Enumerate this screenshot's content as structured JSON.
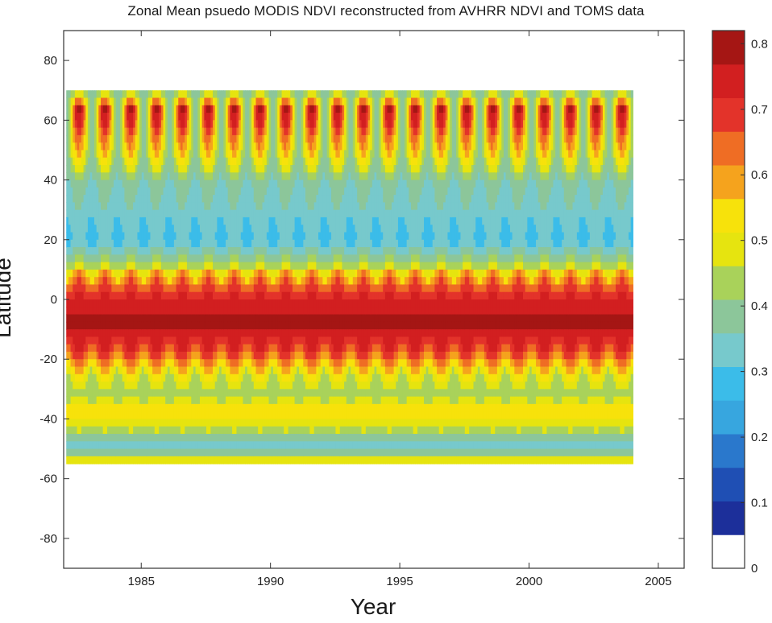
{
  "chart_data": {
    "type": "heatmap",
    "title": "Zonal Mean psuedo MODIS NDVI reconstructed from AVHRR NDVI and TOMS data",
    "xlabel": "Year",
    "ylabel": "Latitude",
    "xlim": [
      1982,
      2006
    ],
    "ylim": [
      -90,
      90
    ],
    "x_ticks": [
      1985,
      1990,
      1995,
      2000,
      2005
    ],
    "y_ticks": [
      80,
      60,
      40,
      20,
      0,
      -20,
      -40,
      -60,
      -80
    ],
    "data_x_range": [
      1982.1,
      2004.0
    ],
    "data_lat_range": [
      -55,
      70
    ],
    "colorbar": {
      "range": [
        0,
        0.82
      ],
      "ticks": [
        0.8,
        0.7,
        0.6,
        0.5,
        0.4,
        0.3,
        0.2,
        0.1,
        0
      ],
      "colors": [
        "#ffffff",
        "#1c2f9a",
        "#1f4fb4",
        "#2a78cc",
        "#37a6df",
        "#3bbce9",
        "#77c9cc",
        "#8cc69a",
        "#a9d25a",
        "#e6e40f",
        "#f7e20b",
        "#f5a31d",
        "#ef6d24",
        "#e3332a",
        "#d21f20",
        "#a51614"
      ]
    },
    "zonal_profile": [
      {
        "lat": 70,
        "summer": 0.4,
        "winter": 0.35
      },
      {
        "lat": 64,
        "summer": 0.8,
        "winter": 0.35
      },
      {
        "lat": 58,
        "summer": 0.72,
        "winter": 0.36
      },
      {
        "lat": 48,
        "summer": 0.55,
        "winter": 0.36
      },
      {
        "lat": 40,
        "summer": 0.38,
        "winter": 0.32
      },
      {
        "lat": 30,
        "summer": 0.33,
        "winter": 0.28
      },
      {
        "lat": 20,
        "summer": 0.3,
        "winter": 0.24
      },
      {
        "lat": 12,
        "summer": 0.42,
        "winter": 0.36
      },
      {
        "lat": 8,
        "summer": 0.65,
        "winter": 0.48
      },
      {
        "lat": 0,
        "summer": 0.73,
        "winter": 0.72
      },
      {
        "lat": -8,
        "summer": 0.78,
        "winter": 0.78
      },
      {
        "lat": -18,
        "summer": 0.6,
        "winter": 0.72
      },
      {
        "lat": -25,
        "summer": 0.4,
        "winter": 0.55
      },
      {
        "lat": -32,
        "summer": 0.38,
        "winter": 0.42
      },
      {
        "lat": -37,
        "summer": 0.52,
        "winter": 0.55
      },
      {
        "lat": -42,
        "summer": 0.45,
        "winter": 0.48
      },
      {
        "lat": -47,
        "summer": 0.35,
        "winter": 0.36
      },
      {
        "lat": -50,
        "summer": 0.28,
        "winter": 0.3
      },
      {
        "lat": -55,
        "summer": 0.5,
        "winter": 0.5
      }
    ]
  }
}
